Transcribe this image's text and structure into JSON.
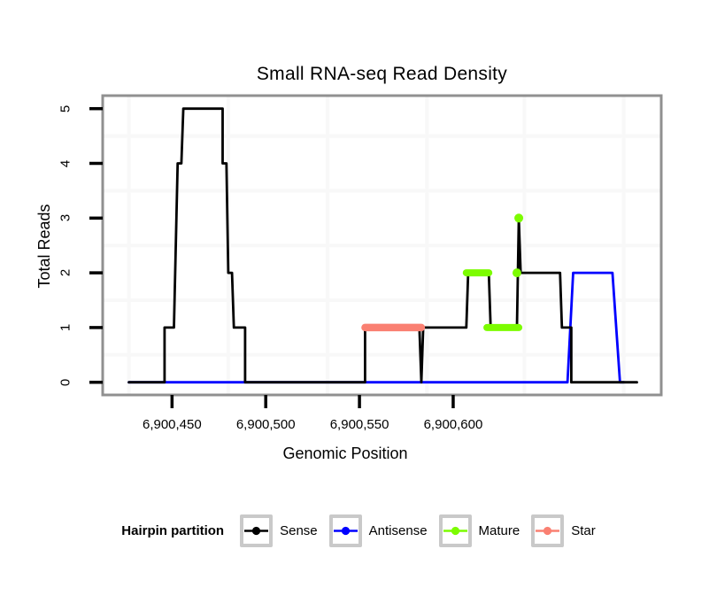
{
  "title": "Small RNA-seq Read Density",
  "x_axis": {
    "label": "Genomic Position",
    "ticks": [
      {
        "value": 6900450,
        "label": "6,900,450"
      },
      {
        "value": 6900500,
        "label": "6,900,500"
      },
      {
        "value": 6900550,
        "label": "6,900,550"
      },
      {
        "value": 6900600,
        "label": "6,900,600"
      }
    ]
  },
  "y_axis": {
    "label": "Total Reads",
    "ticks": [
      {
        "value": 0,
        "label": "0"
      },
      {
        "value": 1,
        "label": "1"
      },
      {
        "value": 2,
        "label": "2"
      },
      {
        "value": 3,
        "label": "3"
      },
      {
        "value": 4,
        "label": "4"
      },
      {
        "value": 5,
        "label": "5"
      }
    ]
  },
  "legend": {
    "title": "Hairpin partition",
    "items": [
      {
        "label": "Sense",
        "color": "#000000"
      },
      {
        "label": "Antisense",
        "color": "#0000FF"
      },
      {
        "label": "Mature",
        "color": "#7CFC00"
      },
      {
        "label": "Star",
        "color": "#FA8072"
      }
    ]
  },
  "colors": {
    "sense": "#000000",
    "antisense": "#0000FF",
    "mature": "#7CFC00",
    "star": "#FA8072",
    "panel_border": "#909090",
    "grid": "#f8f8f8",
    "legend_key_border": "#c9c9c9"
  },
  "chart_data": {
    "type": "line",
    "subtype": "step-density",
    "title": "Small RNA-seq Read Density",
    "xlabel": "Genomic Position",
    "ylabel": "Total Reads",
    "xlim": [
      6900413,
      6900711
    ],
    "ylim": [
      0,
      5
    ],
    "legend_position": "bottom",
    "grid": {
      "minor_x": [
        6900427,
        6900480,
        6900533,
        6900586,
        6900638,
        6900691
      ],
      "minor_y": [
        0.5,
        1.5,
        2.5,
        3.5,
        4.5
      ]
    },
    "series": [
      {
        "name": "Sense",
        "color": "#000000",
        "z": 2,
        "line_width": 2.8,
        "line_points": [
          [
            6900427,
            0
          ],
          [
            6900446,
            0
          ],
          [
            6900446,
            1
          ],
          [
            6900451,
            1
          ],
          [
            6900453,
            4
          ],
          [
            6900455,
            4
          ],
          [
            6900456,
            5
          ],
          [
            6900477,
            5
          ],
          [
            6900477,
            4
          ],
          [
            6900479,
            4
          ],
          [
            6900480,
            2
          ],
          [
            6900482,
            2
          ],
          [
            6900483,
            1
          ],
          [
            6900489,
            1
          ],
          [
            6900489,
            0
          ],
          [
            6900553,
            0
          ],
          [
            6900553,
            1
          ],
          [
            6900582,
            1
          ],
          [
            6900583,
            0
          ],
          [
            6900584,
            1
          ],
          [
            6900607,
            1
          ],
          [
            6900608,
            2
          ],
          [
            6900619,
            2
          ],
          [
            6900620,
            1
          ],
          [
            6900634,
            1
          ],
          [
            6900635,
            3
          ],
          [
            6900636,
            2
          ],
          [
            6900657,
            2
          ],
          [
            6900658,
            1
          ],
          [
            6900663,
            1
          ],
          [
            6900663,
            0
          ],
          [
            6900698,
            0
          ]
        ]
      },
      {
        "name": "Antisense",
        "color": "#0000FF",
        "z": 1,
        "line_width": 2.8,
        "line_points": [
          [
            6900427,
            0
          ],
          [
            6900661,
            0
          ],
          [
            6900664,
            2
          ],
          [
            6900685,
            2
          ],
          [
            6900689,
            0
          ],
          [
            6900691,
            0
          ]
        ]
      },
      {
        "name": "Mature",
        "color": "#7CFC00",
        "z": 4,
        "line_width": 8,
        "thick_segments": [
          {
            "y": 2,
            "from": 6900607,
            "to": 6900619
          },
          {
            "y": 1,
            "from": 6900618,
            "to": 6900635
          }
        ],
        "marker_points": [
          [
            6900634,
            2
          ],
          [
            6900635,
            3
          ]
        ]
      },
      {
        "name": "Star",
        "color": "#FA8072",
        "z": 3,
        "line_width": 8.5,
        "thick_segments": [
          {
            "y": 1,
            "from": 6900553,
            "to": 6900583
          }
        ]
      }
    ]
  }
}
